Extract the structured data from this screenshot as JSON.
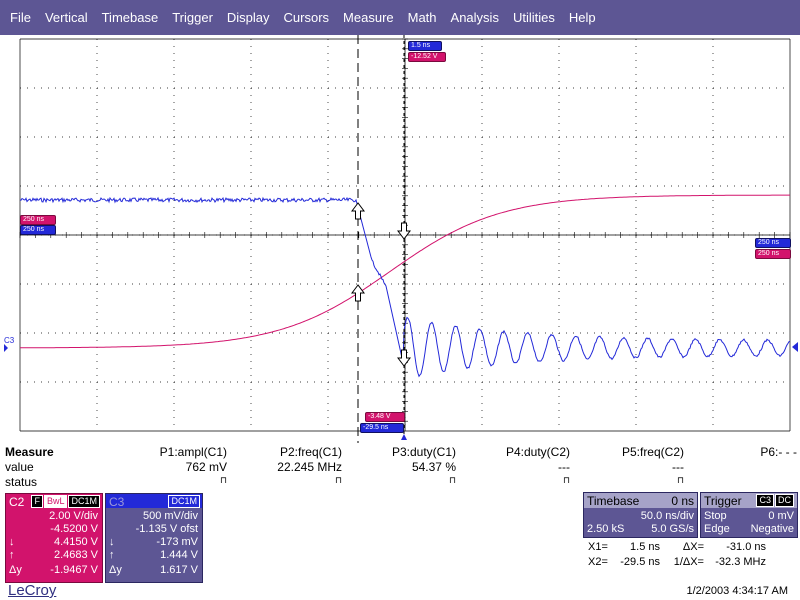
{
  "menu": [
    "File",
    "Vertical",
    "Timebase",
    "Trigger",
    "Display",
    "Cursors",
    "Measure",
    "Math",
    "Analysis",
    "Utilities",
    "Help"
  ],
  "colors": {
    "menu_bg": "#5d5694",
    "c2": "#d2136c",
    "c3": "#2329d8",
    "grid": "#000000"
  },
  "trace_labels": {
    "left_red": "250 ns",
    "left_blue": "250 ns",
    "top_blue": "1.5 ns",
    "top_red": "-12.52 V",
    "right_blue": "250 ns",
    "right_red": "250 ns",
    "bottom_red": "-3.48 V",
    "bottom_blue": "-29.5 ns",
    "c3_marker": "C3"
  },
  "measure": {
    "title": "Measure",
    "row_value_label": "value",
    "row_status_label": "status",
    "params": [
      {
        "name": "P1:ampl(C1)",
        "value": "762 mV",
        "status": "⊓"
      },
      {
        "name": "P2:freq(C1)",
        "value": "22.245 MHz",
        "status": "⊓"
      },
      {
        "name": "P3:duty(C1)",
        "value": "54.37 %",
        "status": "⊓"
      },
      {
        "name": "P4:duty(C2)",
        "value": "---",
        "status": "⊓"
      },
      {
        "name": "P5:freq(C2)",
        "value": "---",
        "status": "⊓"
      },
      {
        "name": "P6:- - -",
        "value": "",
        "status": ""
      }
    ]
  },
  "c2": {
    "name": "C2",
    "flags": [
      "F",
      "BwL",
      "DC1M"
    ],
    "vdiv": "2.00 V/div",
    "offset": "-4.5200 V",
    "down_label": "↓",
    "down": "4.4150 V",
    "up_label": "↑",
    "up": "2.4683 V",
    "dy_label": "Δy",
    "dy": "-1.9467 V"
  },
  "c3": {
    "name": "C3",
    "flags": [
      "DC1M"
    ],
    "vdiv": "500 mV/div",
    "offset": "-1.135 V ofst",
    "down_label": "↓",
    "down": "-173 mV",
    "up_label": "↑",
    "up": "1.444 V",
    "dy_label": "Δy",
    "dy": "1.617 V"
  },
  "timebase": {
    "label": "Timebase",
    "delay": "0 ns",
    "tdiv": "50.0 ns/div",
    "samples": "2.50 kS",
    "rate": "5.0 GS/s"
  },
  "trigger": {
    "label": "Trigger",
    "channel": "C3",
    "coupling": "DC",
    "mode": "Stop",
    "level": "0 mV",
    "type": "Edge",
    "slope": "Negative"
  },
  "cursors": {
    "x1_label": "X1=",
    "x1": "1.5 ns",
    "dx_label": "ΔX=",
    "dx": "-31.0 ns",
    "x2_label": "X2=",
    "x2": "-29.5 ns",
    "inv_dx_label": "1/ΔX=",
    "inv_dx": "-32.3 MHz"
  },
  "footer": {
    "logo": "LeCroy",
    "datetime": "1/2/2003 4:34:17 AM"
  }
}
